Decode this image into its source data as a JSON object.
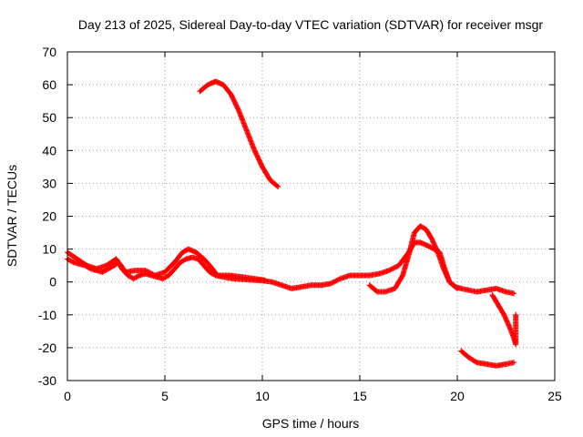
{
  "chart_data": {
    "type": "scatter",
    "title": "Day 213 of 2025, Sidereal Day-to-day VTEC variation (SDTVAR) for receiver msgr",
    "xlabel": "GPS time / hours",
    "ylabel": "SDTVAR / TECUs",
    "xlim": [
      0,
      25
    ],
    "ylim": [
      -30,
      70
    ],
    "xticks": [
      0,
      5,
      10,
      15,
      20,
      25
    ],
    "yticks": [
      -30,
      -20,
      -10,
      0,
      10,
      20,
      30,
      40,
      50,
      60,
      70
    ],
    "grid": true,
    "marker": "plus",
    "color": "#ff0000",
    "series": [
      {
        "name": "satellite-arc-main",
        "points": [
          [
            0,
            7
          ],
          [
            0.3,
            6
          ],
          [
            0.6,
            5.5
          ],
          [
            0.9,
            5
          ],
          [
            1.2,
            4
          ],
          [
            1.5,
            3.5
          ],
          [
            1.8,
            3
          ],
          [
            2.1,
            4
          ],
          [
            2.4,
            5
          ],
          [
            2.6,
            6
          ],
          [
            2.8,
            4
          ],
          [
            3.1,
            2
          ],
          [
            3.4,
            1
          ],
          [
            3.7,
            2
          ],
          [
            4.0,
            2.5
          ],
          [
            4.3,
            2
          ],
          [
            4.6,
            1.5
          ],
          [
            4.9,
            1
          ],
          [
            5.2,
            2
          ],
          [
            5.5,
            4
          ],
          [
            5.8,
            6
          ],
          [
            6.1,
            7
          ],
          [
            6.4,
            7.5
          ],
          [
            6.7,
            7
          ],
          [
            7.0,
            5
          ],
          [
            7.3,
            3
          ],
          [
            7.6,
            2
          ],
          [
            8.0,
            1.5
          ],
          [
            8.5,
            1
          ],
          [
            9.0,
            0.8
          ],
          [
            9.5,
            0.6
          ],
          [
            10.0,
            0.4
          ],
          [
            10.5,
            0
          ],
          [
            11.0,
            -1
          ],
          [
            11.5,
            -2
          ],
          [
            12.0,
            -1.5
          ],
          [
            12.5,
            -1
          ],
          [
            13.0,
            -1
          ],
          [
            13.5,
            -0.5
          ],
          [
            14.0,
            1
          ],
          [
            14.5,
            2
          ],
          [
            15.0,
            2
          ],
          [
            15.5,
            2
          ],
          [
            16.0,
            2.5
          ],
          [
            16.5,
            3.5
          ],
          [
            17.0,
            5
          ],
          [
            17.5,
            9
          ],
          [
            17.8,
            12
          ],
          [
            18.1,
            12
          ],
          [
            18.5,
            11
          ],
          [
            18.8,
            10
          ],
          [
            19.1,
            9
          ],
          [
            19.3,
            5
          ],
          [
            19.6,
            0
          ],
          [
            19.9,
            -1.5
          ],
          [
            20.2,
            -2
          ],
          [
            20.6,
            -2.5
          ],
          [
            21.0,
            -3
          ],
          [
            21.5,
            -2.5
          ],
          [
            22.0,
            -2
          ],
          [
            22.5,
            -3
          ],
          [
            22.9,
            -3.5
          ]
        ]
      },
      {
        "name": "satellite-arc-secondary",
        "points": [
          [
            0,
            9
          ],
          [
            0.5,
            7
          ],
          [
            1.0,
            5
          ],
          [
            1.5,
            4
          ],
          [
            2.0,
            5
          ],
          [
            2.5,
            7
          ],
          [
            3.0,
            3
          ],
          [
            3.5,
            3.5
          ],
          [
            4.0,
            3.5
          ],
          [
            4.5,
            2
          ],
          [
            5.0,
            3
          ],
          [
            5.5,
            6
          ],
          [
            5.9,
            9
          ],
          [
            6.2,
            10
          ],
          [
            6.6,
            9
          ],
          [
            7.0,
            7
          ],
          [
            7.3,
            5
          ],
          [
            7.7,
            2
          ],
          [
            8.3,
            2
          ],
          [
            9.0,
            1.5
          ],
          [
            9.6,
            1
          ],
          [
            10.2,
            0.5
          ],
          [
            15.5,
            -1
          ],
          [
            15.9,
            -3
          ],
          [
            16.3,
            -3
          ],
          [
            16.8,
            -2
          ],
          [
            17.2,
            2
          ],
          [
            17.5,
            8
          ],
          [
            17.8,
            15
          ],
          [
            18.1,
            17
          ],
          [
            18.4,
            16
          ],
          [
            18.7,
            13
          ],
          [
            19.0,
            9
          ],
          [
            19.3,
            4
          ],
          [
            19.6,
            0
          ],
          [
            20.0,
            -2
          ]
        ]
      },
      {
        "name": "satellite-arc-high",
        "points": [
          [
            6.8,
            58
          ],
          [
            7.2,
            60
          ],
          [
            7.6,
            61
          ],
          [
            8.0,
            60
          ],
          [
            8.4,
            57
          ],
          [
            8.8,
            52
          ],
          [
            9.2,
            46
          ],
          [
            9.6,
            40
          ],
          [
            10.0,
            35
          ],
          [
            10.4,
            31
          ],
          [
            10.8,
            29
          ]
        ]
      },
      {
        "name": "satellite-arc-late-low",
        "points": [
          [
            20.2,
            -21
          ],
          [
            20.6,
            -23
          ],
          [
            21.0,
            -24.5
          ],
          [
            21.5,
            -25
          ],
          [
            22.0,
            -25.5
          ],
          [
            22.5,
            -25
          ],
          [
            22.9,
            -24.5
          ]
        ]
      },
      {
        "name": "satellite-arc-late-drop",
        "points": [
          [
            21.8,
            -4
          ],
          [
            22.1,
            -7
          ],
          [
            22.4,
            -10
          ],
          [
            22.7,
            -14
          ],
          [
            22.9,
            -17
          ],
          [
            23.0,
            -19
          ],
          [
            23.0,
            -10
          ]
        ]
      }
    ]
  }
}
